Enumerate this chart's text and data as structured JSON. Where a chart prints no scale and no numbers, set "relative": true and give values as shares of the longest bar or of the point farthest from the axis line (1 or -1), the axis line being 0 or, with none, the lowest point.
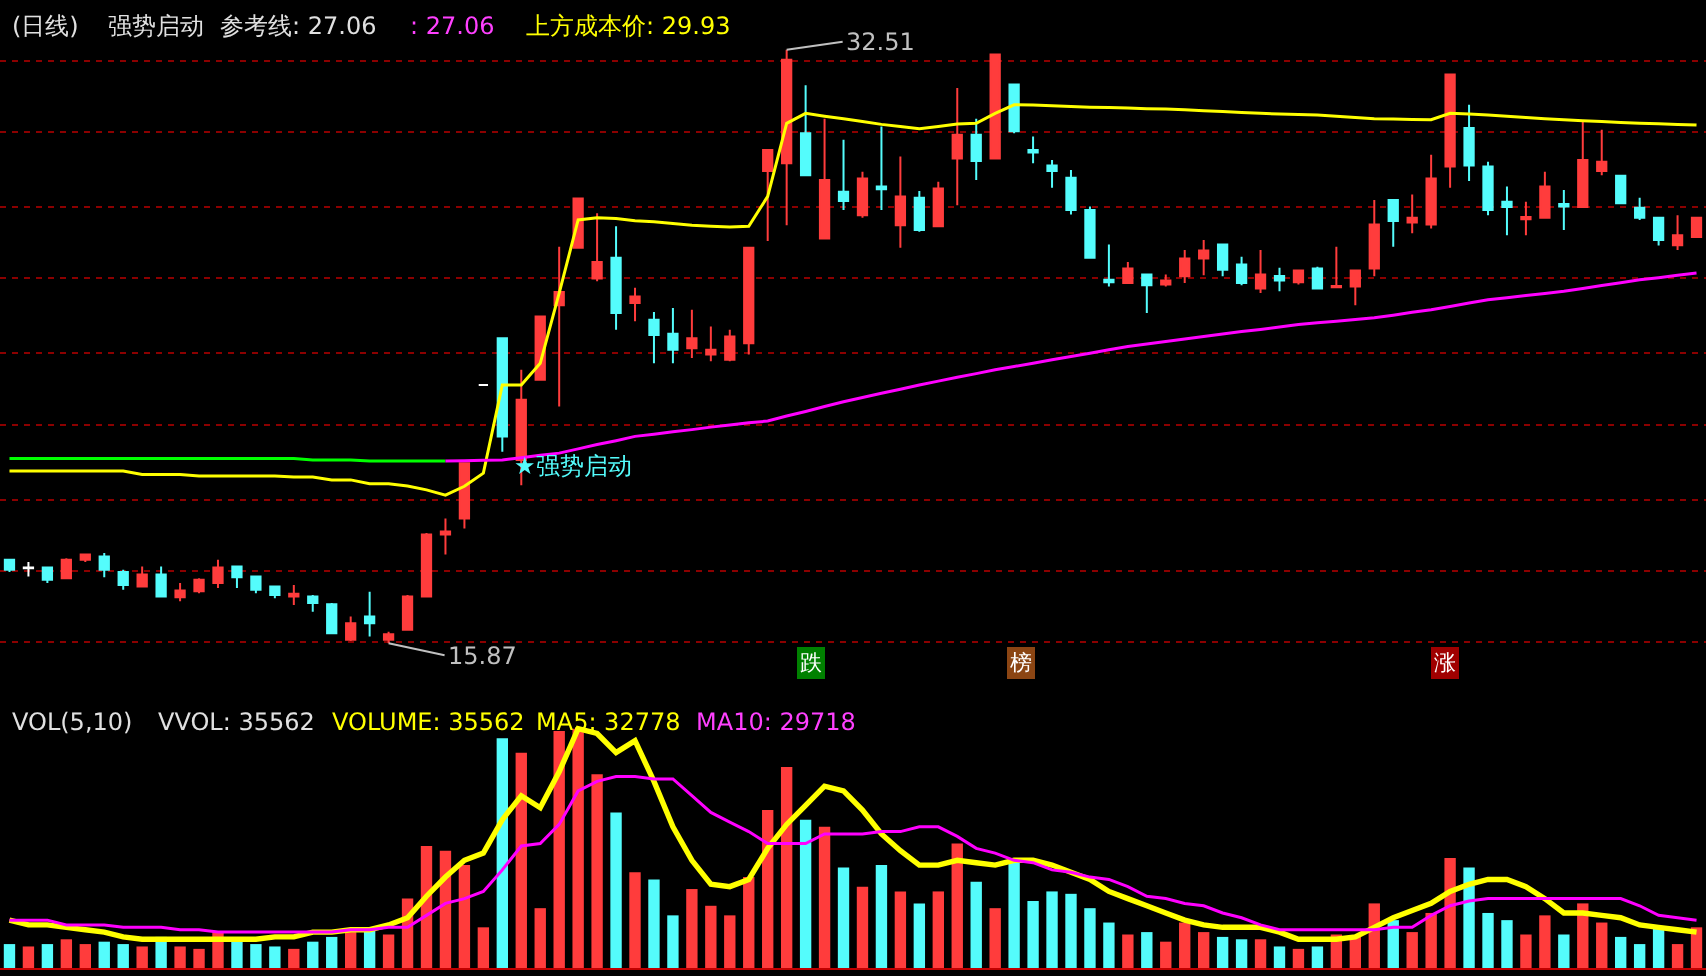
{
  "chart_data": [
    {
      "type": "candlestick",
      "title": "(日线)",
      "categories": [
        null,
        null,
        null,
        null,
        null,
        null,
        null,
        null,
        null,
        null,
        null,
        null,
        null,
        null,
        null,
        null,
        null,
        null,
        null,
        null,
        null,
        null,
        null,
        null,
        null,
        null,
        null,
        null,
        null,
        null,
        null,
        null,
        null,
        null,
        null,
        null,
        null,
        null,
        null,
        null,
        null,
        null,
        null,
        null,
        null,
        null,
        null,
        null,
        null,
        null,
        null,
        null,
        null,
        null,
        null,
        null,
        null,
        null,
        null,
        null,
        null,
        null,
        null,
        null,
        null,
        null,
        null,
        null,
        null,
        null,
        null,
        null,
        null,
        null,
        null,
        null,
        null,
        null,
        null,
        null,
        null,
        null,
        null,
        null,
        null,
        null,
        null,
        null,
        null,
        null
      ],
      "yticks": [
        {
          "value": 32.2,
          "label": null
        },
        {
          "value": 30.2,
          "label": null
        },
        {
          "value": 28.1,
          "label": null
        },
        {
          "value": 26.1,
          "label": null
        },
        {
          "value": 24.0,
          "label": null
        },
        {
          "value": 22.0,
          "label": null
        },
        {
          "value": 19.9,
          "label": null
        },
        {
          "value": 17.9,
          "label": null
        },
        {
          "value": 15.9,
          "label": null
        }
      ],
      "grid": "y",
      "ohlc": [
        [
          18.21,
          18.21,
          17.87,
          17.93
        ],
        [
          17.99,
          18.15,
          17.74,
          17.97
        ],
        [
          17.99,
          17.99,
          17.56,
          17.65
        ],
        [
          17.69,
          18.25,
          17.69,
          18.21
        ],
        [
          18.21,
          18.36,
          18.15,
          18.36
        ],
        [
          18.3,
          18.4,
          17.72,
          17.93
        ],
        [
          17.87,
          17.93,
          17.37,
          17.5
        ],
        [
          17.46,
          18.02,
          17.46,
          17.8
        ],
        [
          17.8,
          18.02,
          17.18,
          17.18
        ],
        [
          17.16,
          17.56,
          17.05,
          17.35
        ],
        [
          17.33,
          17.69,
          17.27,
          17.65
        ],
        [
          17.56,
          18.21,
          17.42,
          17.99
        ],
        [
          18.02,
          18.02,
          17.42,
          17.72
        ],
        [
          17.74,
          17.74,
          17.27,
          17.37
        ],
        [
          17.46,
          17.46,
          17.13,
          17.22
        ],
        [
          17.18,
          17.5,
          16.94,
          17.26
        ],
        [
          17.18,
          17.22,
          16.75,
          17.0
        ],
        [
          16.96,
          17.0,
          16.12,
          16.15
        ],
        [
          15.97,
          16.62,
          15.93,
          16.43
        ],
        [
          16.62,
          17.31,
          16.06,
          16.43
        ],
        [
          15.97,
          16.19,
          15.87,
          16.12
        ],
        [
          16.25,
          17.22,
          16.25,
          17.18
        ],
        [
          17.18,
          18.96,
          17.18,
          18.92
        ],
        [
          18.92,
          19.37,
          18.36,
          19.0
        ],
        [
          19.37,
          20.92,
          19.09,
          20.92
        ],
        [
          23.11,
          23.11,
          23.11,
          23.11
        ],
        [
          24.42,
          24.42,
          21.24,
          21.67
        ],
        [
          21.01,
          23.54,
          20.3,
          22.7
        ],
        [
          23.26,
          25.03,
          23.26,
          25.03
        ],
        [
          25.35,
          26.99,
          22.51,
          25.72
        ],
        [
          26.96,
          28.34,
          26.96,
          28.34
        ],
        [
          26.1,
          27.93,
          26.02,
          26.56
        ],
        [
          26.68,
          27.56,
          24.66,
          25.13
        ],
        [
          25.41,
          25.84,
          24.9,
          25.59
        ],
        [
          24.94,
          25.16,
          23.72,
          24.51
        ],
        [
          24.55,
          25.27,
          23.72,
          24.1
        ],
        [
          24.14,
          25.22,
          23.87,
          24.42
        ],
        [
          23.97,
          24.75,
          23.78,
          24.1
        ],
        [
          23.82,
          24.66,
          23.78,
          24.47
        ],
        [
          24.28,
          26.96,
          23.97,
          26.96
        ],
        [
          29.11,
          29.7,
          27.15,
          29.7
        ],
        [
          29.33,
          32.51,
          27.59,
          32.23
        ],
        [
          30.17,
          31.52,
          28.99,
          28.99
        ],
        [
          27.22,
          30.58,
          27.22,
          28.86
        ],
        [
          28.53,
          29.99,
          28.02,
          28.27
        ],
        [
          27.87,
          29.09,
          27.8,
          28.9
        ],
        [
          28.68,
          30.36,
          28.02,
          28.6
        ],
        [
          27.59,
          29.52,
          26.96,
          28.4
        ],
        [
          28.36,
          28.55,
          27.41,
          27.46
        ],
        [
          27.56,
          28.81,
          27.56,
          28.62
        ],
        [
          29.46,
          31.44,
          28.15,
          30.13
        ],
        [
          30.13,
          30.58,
          28.86,
          29.39
        ],
        [
          29.46,
          32.38,
          29.46,
          32.38
        ],
        [
          31.54,
          31.54,
          30.17,
          30.23
        ],
        [
          29.7,
          30.08,
          29.33,
          29.63
        ],
        [
          29.27,
          29.42,
          28.64,
          29.11
        ],
        [
          28.92,
          29.14,
          27.89,
          28.02
        ],
        [
          28.02,
          28.12,
          26.68,
          26.68
        ],
        [
          26.06,
          27.05,
          25.87,
          25.99
        ],
        [
          25.97,
          26.56,
          25.97,
          26.38
        ],
        [
          26.21,
          26.21,
          25.13,
          25.91
        ],
        [
          25.93,
          26.21,
          25.87,
          26.04
        ],
        [
          26.16,
          26.9,
          25.97,
          26.66
        ],
        [
          26.66,
          27.18,
          26.19,
          26.88
        ],
        [
          27.05,
          27.05,
          26.16,
          26.34
        ],
        [
          26.49,
          26.71,
          25.91,
          25.97
        ],
        [
          25.82,
          26.9,
          25.69,
          26.21
        ],
        [
          26.17,
          26.4,
          25.74,
          26.04
        ],
        [
          25.99,
          26.32,
          25.93,
          26.32
        ],
        [
          26.38,
          26.43,
          25.82,
          25.82
        ],
        [
          25.85,
          26.99,
          25.84,
          25.89
        ],
        [
          25.87,
          26.32,
          25.35,
          26.32
        ],
        [
          26.38,
          28.3,
          26.16,
          27.61
        ],
        [
          28.3,
          28.3,
          26.99,
          27.71
        ],
        [
          27.67,
          28.45,
          27.37,
          27.8
        ],
        [
          27.61,
          29.57,
          27.5,
          28.9
        ],
        [
          29.24,
          31.82,
          28.64,
          31.82
        ],
        [
          30.32,
          30.97,
          28.83,
          29.27
        ],
        [
          29.24,
          29.37,
          27.87,
          28.02
        ],
        [
          28.25,
          28.68,
          27.31,
          28.1
        ],
        [
          27.76,
          28.25,
          27.31,
          27.82
        ],
        [
          27.8,
          29.09,
          27.8,
          28.68
        ],
        [
          28.19,
          28.58,
          27.46,
          28.12
        ],
        [
          28.1,
          30.49,
          28.1,
          29.42
        ],
        [
          29.11,
          30.27,
          28.99,
          29.37
        ],
        [
          28.98,
          28.98,
          28.21,
          28.21
        ],
        [
          28.08,
          28.36,
          27.74,
          27.8
        ],
        [
          27.8,
          27.8,
          27.02,
          27.18
        ],
        [
          27.03,
          27.87,
          26.9,
          27.31
        ],
        [
          27.26,
          27.8,
          27.26,
          27.8
        ]
      ],
      "colors": [
        "#54fcfc",
        "#ffffff",
        "#54fcfc",
        "#ff3c3c",
        "#ff3c3c",
        "#54fcfc",
        "#54fcfc",
        "#ff3c3c",
        "#54fcfc",
        "#ff3c3c",
        "#ff3c3c",
        "#ff3c3c",
        "#54fcfc",
        "#54fcfc",
        "#54fcfc",
        "#ff3c3c",
        "#54fcfc",
        "#54fcfc",
        "#ff3c3c",
        "#54fcfc",
        "#ff3c3c",
        "#ff3c3c",
        "#ff3c3c",
        "#ff3c3c",
        "#ff3c3c",
        "#ffffff",
        "#54fcfc",
        "#ff3c3c",
        "#ff3c3c",
        "#ff3c3c",
        "#ff3c3c",
        "#ff3c3c",
        "#54fcfc",
        "#ff3c3c",
        "#54fcfc",
        "#54fcfc",
        "#ff3c3c",
        "#ff3c3c",
        "#ff3c3c",
        "#ff3c3c",
        "#ff3c3c",
        "#ff3c3c",
        "#54fcfc",
        "#ff3c3c",
        "#54fcfc",
        "#ff3c3c",
        "#54fcfc",
        "#ff3c3c",
        "#54fcfc",
        "#ff3c3c",
        "#ff3c3c",
        "#54fcfc",
        "#ff3c3c",
        "#54fcfc",
        "#54fcfc",
        "#54fcfc",
        "#54fcfc",
        "#54fcfc",
        "#54fcfc",
        "#ff3c3c",
        "#54fcfc",
        "#ff3c3c",
        "#ff3c3c",
        "#ff3c3c",
        "#54fcfc",
        "#54fcfc",
        "#ff3c3c",
        "#54fcfc",
        "#ff3c3c",
        "#54fcfc",
        "#ff3c3c",
        "#ff3c3c",
        "#ff3c3c",
        "#54fcfc",
        "#ff3c3c",
        "#ff3c3c",
        "#ff3c3c",
        "#54fcfc",
        "#54fcfc",
        "#54fcfc",
        "#ff3c3c",
        "#ff3c3c",
        "#54fcfc",
        "#ff3c3c",
        "#ff3c3c",
        "#54fcfc",
        "#54fcfc",
        "#54fcfc",
        "#ff3c3c",
        "#ff3c3c"
      ],
      "series": [
        {
          "type": "line",
          "color": "#ffff00",
          "values": [
            20.7,
            20.7,
            20.7,
            20.7,
            20.7,
            20.7,
            20.7,
            20.6,
            20.6,
            20.6,
            20.56,
            20.56,
            20.56,
            20.56,
            20.56,
            20.53,
            20.53,
            20.45,
            20.45,
            20.34,
            20.34,
            20.28,
            20.17,
            20.02,
            20.27,
            20.64,
            23.11,
            23.11,
            23.72,
            25.69,
            27.74,
            27.8,
            27.78,
            27.72,
            27.69,
            27.64,
            27.59,
            27.56,
            27.54,
            27.56,
            28.4,
            30.45,
            30.73,
            30.65,
            30.58,
            30.5,
            30.42,
            30.36,
            30.3,
            30.36,
            30.43,
            30.45,
            30.73,
            30.97,
            30.96,
            30.94,
            30.92,
            30.9,
            30.89,
            30.88,
            30.86,
            30.85,
            30.83,
            30.8,
            30.78,
            30.75,
            30.73,
            30.71,
            30.7,
            30.68,
            30.65,
            30.61,
            30.58,
            30.57,
            30.56,
            30.55,
            30.73,
            30.71,
            30.68,
            30.65,
            30.61,
            30.58,
            30.55,
            30.52,
            30.5,
            30.47,
            30.45,
            30.44,
            30.42,
            30.4
          ]
        },
        {
          "type": "line",
          "color": "#00ff00",
          "values": [
            21.05,
            21.05,
            21.05,
            21.05,
            21.05,
            21.05,
            21.05,
            21.05,
            21.05,
            21.05,
            21.05,
            21.05,
            21.05,
            21.05,
            21.05,
            21.05,
            21.01,
            21.01,
            21.01,
            20.98,
            20.98,
            20.98,
            20.98,
            20.98,
            null,
            null,
            null,
            null,
            null,
            null,
            null,
            null,
            null,
            null,
            null,
            null,
            null,
            null,
            null,
            null,
            null,
            null,
            null,
            null,
            null,
            null,
            null,
            null,
            null,
            null,
            null,
            null,
            null,
            null,
            null,
            null,
            null,
            null,
            null,
            null,
            null,
            null,
            null,
            null,
            null,
            null,
            null,
            null,
            null,
            null,
            null,
            null,
            null,
            null,
            null,
            null,
            null,
            null,
            null,
            null,
            null,
            null,
            null,
            null,
            null,
            null,
            null,
            null,
            null,
            null
          ]
        },
        {
          "type": "line",
          "color": "#ff00ff",
          "values": [
            null,
            null,
            null,
            null,
            null,
            null,
            null,
            null,
            null,
            null,
            null,
            null,
            null,
            null,
            null,
            null,
            null,
            null,
            null,
            null,
            null,
            null,
            null,
            20.98,
            20.99,
            21.0,
            21.01,
            21.07,
            21.14,
            21.2,
            21.32,
            21.44,
            21.55,
            21.67,
            21.73,
            21.8,
            21.86,
            21.93,
            21.99,
            22.05,
            22.1,
            22.24,
            22.37,
            22.51,
            22.64,
            22.76,
            22.88,
            22.99,
            23.11,
            23.22,
            23.33,
            23.43,
            23.54,
            23.63,
            23.72,
            23.82,
            23.91,
            24.0,
            24.1,
            24.19,
            24.26,
            24.33,
            24.4,
            24.47,
            24.54,
            24.61,
            24.67,
            24.74,
            24.81,
            24.86,
            24.9,
            24.95,
            25.0,
            25.07,
            25.15,
            25.22,
            25.31,
            25.41,
            25.5,
            25.56,
            25.62,
            25.68,
            25.74,
            25.82,
            25.9,
            25.98,
            26.06,
            26.12,
            26.19,
            26.25
          ]
        }
      ],
      "annotations": [
        "强势启动",
        "参考线: 27.06",
        ": 27.06",
        "上方成本价: 29.93",
        "32.51",
        "15.87",
        "★强势启动",
        "跌",
        "榜",
        "涨"
      ]
    },
    {
      "type": "bar",
      "relative": true,
      "categories": [
        null,
        null,
        null,
        null,
        null,
        null,
        null,
        null,
        null,
        null,
        null,
        null,
        null,
        null,
        null,
        null,
        null,
        null,
        null,
        null,
        null,
        null,
        null,
        null,
        null,
        null,
        null,
        null,
        null,
        null,
        null,
        null,
        null,
        null,
        null,
        null,
        null,
        null,
        null,
        null,
        null,
        null,
        null,
        null,
        null,
        null,
        null,
        null,
        null,
        null,
        null,
        null,
        null,
        null,
        null,
        null,
        null,
        null,
        null,
        null,
        null,
        null,
        null,
        null,
        null,
        null,
        null,
        null,
        null,
        null,
        null,
        null,
        null,
        null,
        null,
        null,
        null,
        null,
        null,
        null,
        null,
        null,
        null,
        null,
        null,
        null,
        null,
        null,
        null,
        null
      ],
      "series": [
        {
          "type": "bar",
          "values": [
            0.1,
            0.09,
            0.1,
            0.12,
            0.1,
            0.11,
            0.1,
            0.09,
            0.13,
            0.09,
            0.08,
            0.15,
            0.12,
            0.1,
            0.09,
            0.08,
            0.11,
            0.13,
            0.15,
            0.16,
            0.14,
            0.29,
            0.51,
            0.49,
            0.43,
            0.17,
            0.96,
            0.9,
            0.25,
            0.99,
            1,
            0.81,
            0.65,
            0.4,
            0.37,
            0.22,
            0.33,
            0.26,
            0.22,
            0.38,
            0.66,
            0.84,
            0.62,
            0.59,
            0.42,
            0.34,
            0.43,
            0.32,
            0.27,
            0.32,
            0.52,
            0.36,
            0.25,
            0.46,
            0.28,
            0.32,
            0.31,
            0.25,
            0.19,
            0.14,
            0.15,
            0.11,
            0.19,
            0.15,
            0.13,
            0.12,
            0.12,
            0.09,
            0.08,
            0.09,
            0.14,
            0.13,
            0.27,
            0.2,
            0.15,
            0.23,
            0.46,
            0.42,
            0.23,
            0.2,
            0.14,
            0.22,
            0.14,
            0.27,
            0.19,
            0.13,
            0.1,
            0.17,
            0.1,
            0.17
          ],
          "colors": [
            "#54fcfc",
            "#ff3c3c",
            "#54fcfc",
            "#ff3c3c",
            "#ff3c3c",
            "#54fcfc",
            "#54fcfc",
            "#ff3c3c",
            "#54fcfc",
            "#ff3c3c",
            "#ff3c3c",
            "#ff3c3c",
            "#54fcfc",
            "#54fcfc",
            "#54fcfc",
            "#ff3c3c",
            "#54fcfc",
            "#54fcfc",
            "#ff3c3c",
            "#54fcfc",
            "#ff3c3c",
            "#ff3c3c",
            "#ff3c3c",
            "#ff3c3c",
            "#ff3c3c",
            "#ff3c3c",
            "#54fcfc",
            "#ff3c3c",
            "#ff3c3c",
            "#ff3c3c",
            "#ff3c3c",
            "#ff3c3c",
            "#54fcfc",
            "#ff3c3c",
            "#54fcfc",
            "#54fcfc",
            "#ff3c3c",
            "#ff3c3c",
            "#ff3c3c",
            "#ff3c3c",
            "#ff3c3c",
            "#ff3c3c",
            "#54fcfc",
            "#ff3c3c",
            "#54fcfc",
            "#ff3c3c",
            "#54fcfc",
            "#ff3c3c",
            "#54fcfc",
            "#ff3c3c",
            "#ff3c3c",
            "#54fcfc",
            "#ff3c3c",
            "#54fcfc",
            "#54fcfc",
            "#54fcfc",
            "#54fcfc",
            "#54fcfc",
            "#54fcfc",
            "#ff3c3c",
            "#54fcfc",
            "#ff3c3c",
            "#ff3c3c",
            "#ff3c3c",
            "#54fcfc",
            "#54fcfc",
            "#ff3c3c",
            "#54fcfc",
            "#ff3c3c",
            "#54fcfc",
            "#ff3c3c",
            "#ff3c3c",
            "#ff3c3c",
            "#54fcfc",
            "#ff3c3c",
            "#ff3c3c",
            "#ff3c3c",
            "#54fcfc",
            "#54fcfc",
            "#54fcfc",
            "#ff3c3c",
            "#ff3c3c",
            "#54fcfc",
            "#ff3c3c",
            "#ff3c3c",
            "#54fcfc",
            "#54fcfc",
            "#54fcfc",
            "#ff3c3c",
            "#ff3c3c"
          ]
        }
      ],
      "annotations": [
        "VOL(5,10)",
        "VVOL: 35562",
        "VOLUME: 35562",
        "MA5: 32778",
        "MA10: 29718"
      ]
    },
    {
      "type": "line",
      "relative": true,
      "categories": [
        null,
        null,
        null,
        null,
        null,
        null,
        null,
        null,
        null,
        null,
        null,
        null,
        null,
        null,
        null,
        null,
        null,
        null,
        null,
        null,
        null,
        null,
        null,
        null,
        null,
        null,
        null,
        null,
        null,
        null,
        null,
        null,
        null,
        null,
        null,
        null,
        null,
        null,
        null,
        null,
        null,
        null,
        null,
        null,
        null,
        null,
        null,
        null,
        null,
        null,
        null,
        null,
        null,
        null,
        null,
        null,
        null,
        null,
        null,
        null,
        null,
        null,
        null,
        null,
        null,
        null,
        null,
        null,
        null,
        null,
        null,
        null,
        null,
        null,
        null,
        null,
        null,
        null,
        null,
        null,
        null,
        null,
        null,
        null,
        null,
        null,
        null,
        null,
        null,
        null
      ],
      "series": [
        {
          "color": "#ffff00",
          "values": [
            0.2,
            0.18,
            0.18,
            0.17,
            0.16,
            0.15,
            0.13,
            0.12,
            0.12,
            0.12,
            0.12,
            0.12,
            0.12,
            0.12,
            0.13,
            0.13,
            0.15,
            0.15,
            0.16,
            0.16,
            0.18,
            0.21,
            0.3,
            0.38,
            0.45,
            0.48,
            0.62,
            0.72,
            0.67,
            0.82,
            1,
            0.98,
            0.9,
            0.95,
            0.78,
            0.59,
            0.45,
            0.35,
            0.34,
            0.37,
            0.5,
            0.6,
            0.68,
            0.76,
            0.74,
            0.66,
            0.56,
            0.49,
            0.43,
            0.43,
            0.45,
            0.44,
            0.43,
            0.45,
            0.45,
            0.43,
            0.4,
            0.37,
            0.32,
            0.29,
            0.26,
            0.23,
            0.2,
            0.18,
            0.17,
            0.17,
            0.17,
            0.15,
            0.12,
            0.12,
            0.12,
            0.13,
            0.17,
            0.21,
            0.24,
            0.27,
            0.32,
            0.35,
            0.37,
            0.37,
            0.34,
            0.29,
            0.23,
            0.23,
            0.22,
            0.21,
            0.18,
            0.17,
            0.16,
            0.15
          ]
        },
        {
          "color": "#ff00ff",
          "values": [
            0.2,
            0.2,
            0.2,
            0.18,
            0.18,
            0.18,
            0.17,
            0.17,
            0.17,
            0.16,
            0.16,
            0.15,
            0.15,
            0.15,
            0.15,
            0.15,
            0.15,
            0.15,
            0.16,
            0.16,
            0.17,
            0.17,
            0.22,
            0.27,
            0.29,
            0.32,
            0.41,
            0.51,
            0.52,
            0.6,
            0.74,
            0.78,
            0.8,
            0.8,
            0.79,
            0.79,
            0.72,
            0.65,
            0.61,
            0.57,
            0.52,
            0.52,
            0.52,
            0.56,
            0.56,
            0.56,
            0.57,
            0.57,
            0.59,
            0.59,
            0.55,
            0.5,
            0.48,
            0.45,
            0.44,
            0.41,
            0.4,
            0.38,
            0.37,
            0.34,
            0.3,
            0.29,
            0.27,
            0.26,
            0.23,
            0.21,
            0.18,
            0.16,
            0.16,
            0.16,
            0.16,
            0.16,
            0.16,
            0.17,
            0.17,
            0.22,
            0.26,
            0.28,
            0.29,
            0.29,
            0.29,
            0.29,
            0.29,
            0.29,
            0.29,
            0.29,
            0.26,
            0.22,
            0.21,
            0.2
          ]
        }
      ]
    }
  ]
}
